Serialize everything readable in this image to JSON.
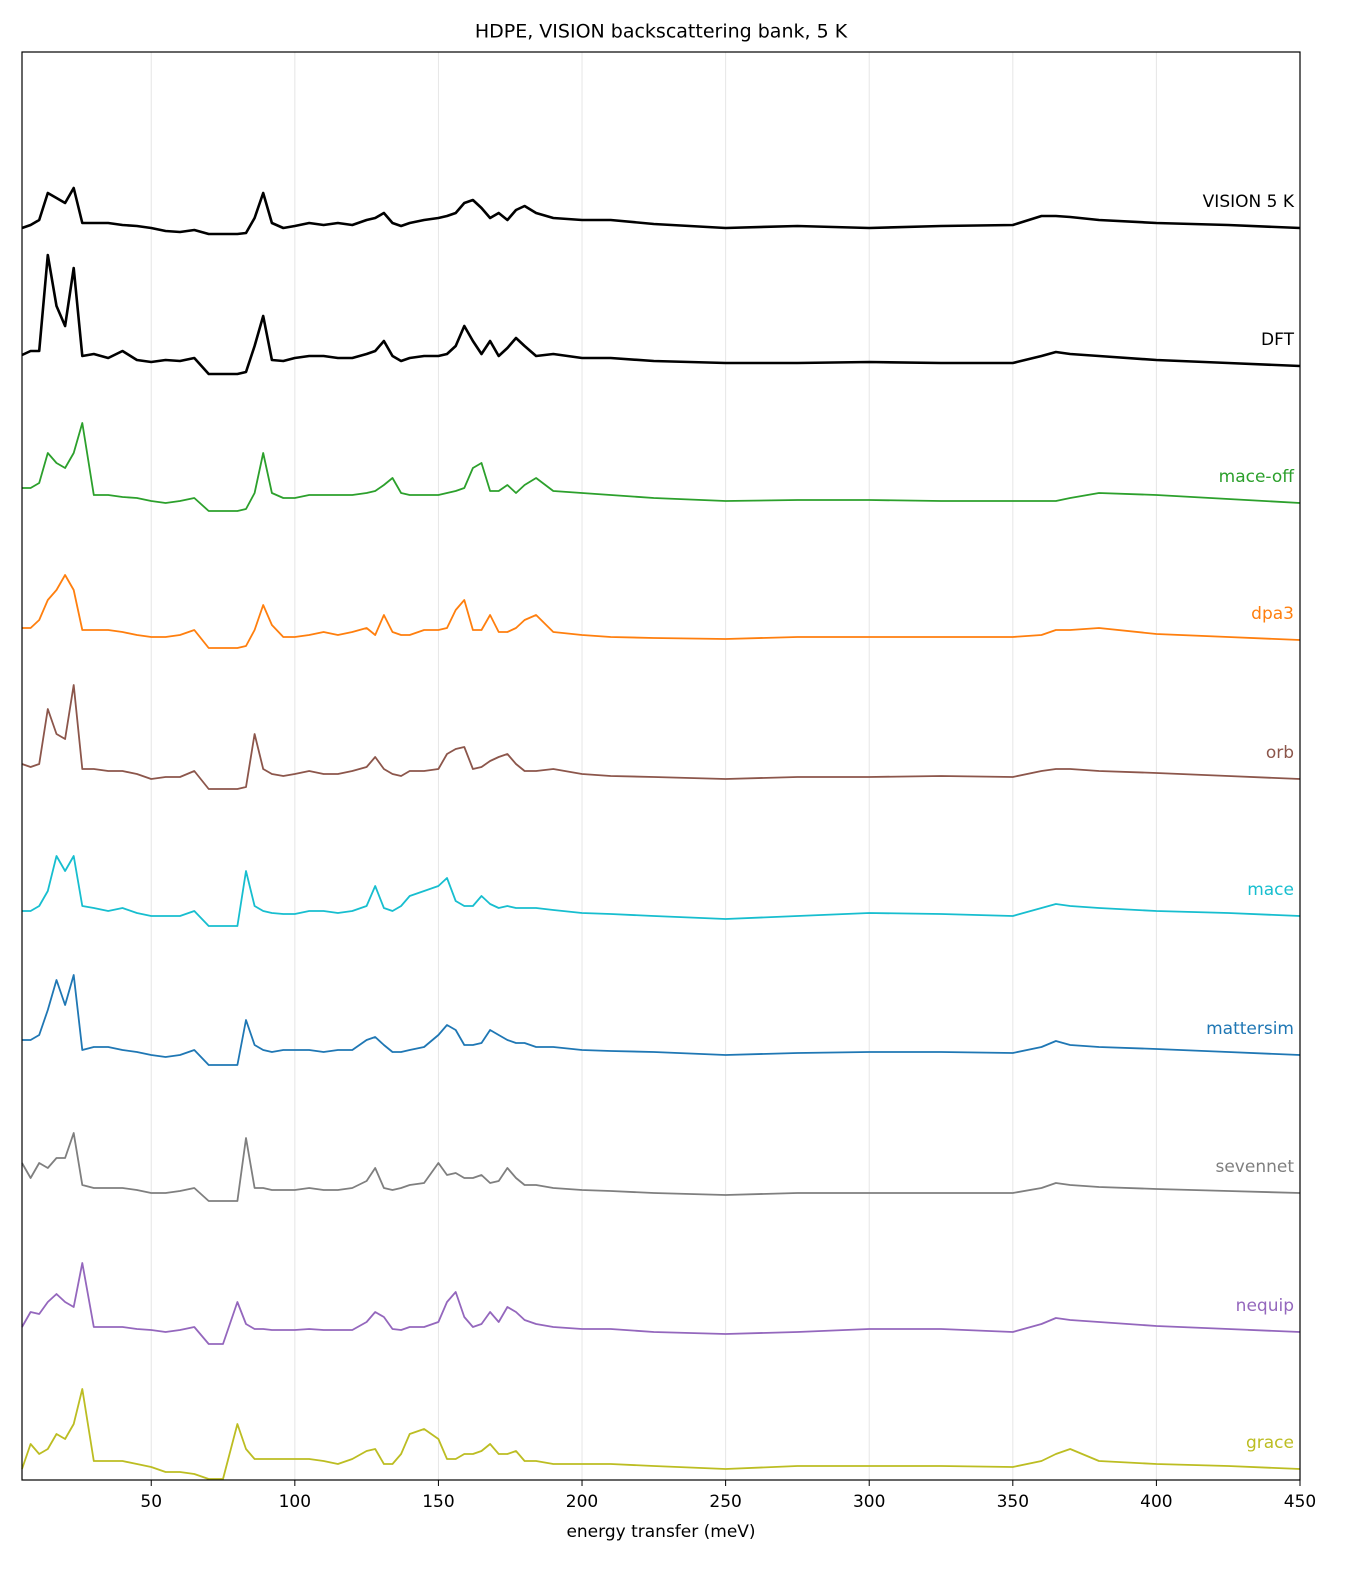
{
  "chart_data": {
    "type": "line",
    "title": "HDPE, VISION backscattering bank, 5 K",
    "x_label": "energy transfer (meV)",
    "xlim": [
      5,
      450
    ],
    "xticks": [
      50,
      100,
      150,
      200,
      250,
      300,
      350,
      400,
      450
    ],
    "ylim": [
      0,
      1428
    ],
    "grid": true,
    "x": [
      5,
      8,
      11,
      14,
      17,
      20,
      23,
      26,
      30,
      35,
      40,
      45,
      50,
      55,
      60,
      65,
      70,
      75,
      80,
      83,
      86,
      89,
      92,
      96,
      100,
      105,
      110,
      115,
      120,
      125,
      128,
      131,
      134,
      137,
      140,
      145,
      150,
      153,
      156,
      159,
      162,
      165,
      168,
      171,
      174,
      177,
      180,
      184,
      190,
      200,
      210,
      225,
      250,
      275,
      300,
      325,
      350,
      360,
      365,
      370,
      380,
      400,
      425,
      450
    ],
    "series": [
      {
        "name": "VISION 5 K",
        "color": "#000000",
        "values": [
          1252,
          1255,
          1260,
          1287,
          1282,
          1277,
          1292,
          1257,
          1257,
          1257,
          1255,
          1254,
          1252,
          1249,
          1248,
          1250,
          1246,
          1246,
          1246,
          1247,
          1262,
          1287,
          1257,
          1252,
          1254,
          1257,
          1255,
          1257,
          1255,
          1260,
          1262,
          1267,
          1257,
          1254,
          1257,
          1260,
          1262,
          1264,
          1267,
          1277,
          1280,
          1272,
          1262,
          1267,
          1260,
          1270,
          1274,
          1267,
          1262,
          1260,
          1260,
          1256,
          1252,
          1254,
          1252,
          1254,
          1255,
          1264,
          1264,
          1263,
          1260,
          1257,
          1255,
          1252
        ]
      },
      {
        "name": "DFT",
        "color": "#000000",
        "values": [
          1125,
          1129,
          1129,
          1225,
          1174,
          1154,
          1212,
          1124,
          1126,
          1122,
          1129,
          1120,
          1118,
          1120,
          1119,
          1122,
          1106,
          1106,
          1106,
          1108,
          1134,
          1164,
          1120,
          1119,
          1122,
          1124,
          1124,
          1122,
          1122,
          1126,
          1129,
          1139,
          1124,
          1119,
          1122,
          1124,
          1124,
          1126,
          1134,
          1154,
          1139,
          1126,
          1139,
          1124,
          1132,
          1142,
          1134,
          1124,
          1126,
          1122,
          1122,
          1119,
          1117,
          1117,
          1118,
          1117,
          1117,
          1124,
          1128,
          1126,
          1124,
          1120,
          1117,
          1114
        ]
      },
      {
        "name": "mace-off",
        "color": "#2ca02c",
        "values": [
          992,
          992,
          997,
          1027,
          1017,
          1012,
          1027,
          1057,
          985,
          985,
          983,
          982,
          979,
          977,
          979,
          982,
          969,
          969,
          969,
          971,
          987,
          1027,
          987,
          982,
          982,
          985,
          985,
          985,
          985,
          987,
          989,
          995,
          1002,
          987,
          985,
          985,
          985,
          987,
          989,
          992,
          1012,
          1017,
          989,
          989,
          995,
          987,
          995,
          1002,
          989,
          987,
          985,
          982,
          979,
          980,
          980,
          979,
          979,
          979,
          979,
          982,
          987,
          985,
          981,
          977
        ]
      },
      {
        "name": "dpa3",
        "color": "#ff7f0e",
        "values": [
          852,
          852,
          860,
          880,
          890,
          905,
          890,
          850,
          850,
          850,
          848,
          845,
          843,
          843,
          845,
          850,
          832,
          832,
          832,
          834,
          850,
          875,
          855,
          843,
          843,
          845,
          848,
          845,
          848,
          852,
          845,
          865,
          848,
          845,
          845,
          850,
          850,
          852,
          870,
          880,
          850,
          850,
          865,
          848,
          848,
          852,
          860,
          865,
          848,
          845,
          843,
          842,
          841,
          843,
          843,
          843,
          843,
          845,
          850,
          850,
          852,
          846,
          843,
          840
        ]
      },
      {
        "name": "orb",
        "color": "#8c564b",
        "values": [
          716,
          713,
          716,
          771,
          746,
          741,
          795,
          711,
          711,
          709,
          709,
          706,
          701,
          703,
          703,
          709,
          691,
          691,
          691,
          693,
          746,
          711,
          706,
          704,
          706,
          709,
          706,
          706,
          709,
          713,
          723,
          711,
          706,
          704,
          709,
          709,
          711,
          726,
          731,
          733,
          711,
          713,
          719,
          723,
          726,
          716,
          709,
          709,
          711,
          706,
          704,
          703,
          701,
          703,
          703,
          704,
          703,
          709,
          711,
          711,
          709,
          707,
          704,
          701
        ]
      },
      {
        "name": "mace",
        "color": "#17becf",
        "values": [
          569,
          569,
          574,
          589,
          624,
          609,
          624,
          574,
          572,
          569,
          572,
          567,
          564,
          564,
          564,
          569,
          554,
          554,
          554,
          609,
          574,
          569,
          567,
          566,
          566,
          569,
          569,
          567,
          569,
          574,
          594,
          572,
          569,
          574,
          584,
          589,
          594,
          602,
          579,
          574,
          574,
          584,
          576,
          572,
          574,
          572,
          572,
          572,
          570,
          567,
          566,
          564,
          561,
          564,
          567,
          566,
          564,
          572,
          576,
          574,
          572,
          569,
          567,
          564
        ]
      },
      {
        "name": "mattersim",
        "color": "#1f77b4",
        "values": [
          440,
          440,
          445,
          470,
          500,
          475,
          505,
          430,
          433,
          433,
          430,
          428,
          425,
          423,
          425,
          430,
          415,
          415,
          415,
          460,
          435,
          430,
          428,
          430,
          430,
          430,
          428,
          430,
          430,
          440,
          443,
          435,
          428,
          428,
          430,
          433,
          445,
          455,
          450,
          435,
          435,
          437,
          450,
          445,
          440,
          437,
          437,
          433,
          433,
          430,
          429,
          428,
          425,
          427,
          428,
          428,
          427,
          433,
          439,
          435,
          433,
          431,
          428,
          425
        ]
      },
      {
        "name": "sevennet",
        "color": "#7f7f7f",
        "values": [
          317,
          302,
          317,
          312,
          322,
          322,
          347,
          295,
          292,
          292,
          292,
          290,
          287,
          287,
          289,
          292,
          279,
          279,
          279,
          342,
          292,
          292,
          290,
          290,
          290,
          292,
          290,
          290,
          292,
          299,
          312,
          292,
          290,
          292,
          295,
          297,
          317,
          305,
          307,
          302,
          302,
          305,
          297,
          299,
          312,
          302,
          295,
          295,
          292,
          290,
          289,
          287,
          285,
          287,
          287,
          287,
          287,
          292,
          297,
          295,
          293,
          291,
          289,
          287
        ]
      },
      {
        "name": "nequip",
        "color": "#9467bd",
        "values": [
          153,
          168,
          166,
          178,
          186,
          178,
          173,
          217,
          153,
          153,
          153,
          151,
          150,
          148,
          150,
          153,
          136,
          136,
          178,
          156,
          151,
          151,
          150,
          150,
          150,
          151,
          150,
          150,
          150,
          158,
          168,
          163,
          151,
          150,
          153,
          153,
          158,
          178,
          188,
          163,
          153,
          156,
          168,
          158,
          173,
          168,
          160,
          156,
          153,
          151,
          151,
          148,
          146,
          148,
          151,
          151,
          148,
          156,
          162,
          160,
          158,
          154,
          151,
          148
        ]
      },
      {
        "name": "grace",
        "color": "#bcbd22",
        "values": [
          11,
          36,
          26,
          31,
          46,
          41,
          56,
          91,
          19,
          19,
          19,
          16,
          13,
          8,
          8,
          6,
          1,
          1,
          56,
          31,
          21,
          21,
          21,
          21,
          21,
          21,
          19,
          16,
          21,
          29,
          31,
          16,
          16,
          26,
          46,
          51,
          41,
          21,
          21,
          26,
          26,
          29,
          36,
          26,
          26,
          29,
          19,
          19,
          16,
          16,
          16,
          14,
          11,
          14,
          14,
          14,
          13,
          19,
          26,
          31,
          19,
          16,
          14,
          11
        ]
      }
    ]
  }
}
